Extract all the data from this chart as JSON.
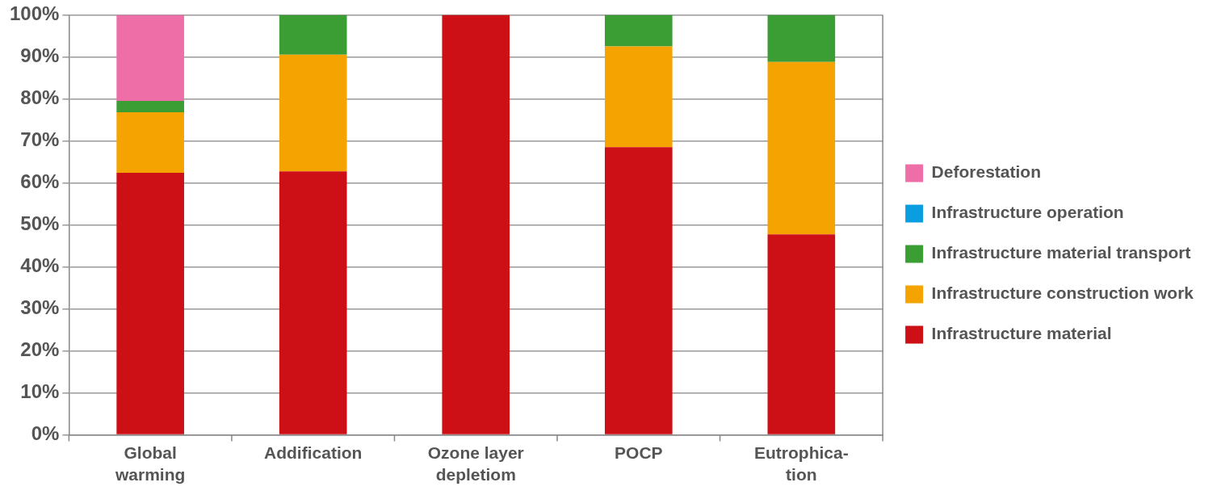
{
  "chart_data": {
    "type": "bar",
    "stacked": true,
    "categories": [
      "Global warming",
      "Addification",
      "Ozone layer depletiom",
      "POCP",
      "Eutrophica-tion"
    ],
    "series": [
      {
        "name": "Infrastructure material",
        "color": "#cc1016",
        "values": [
          62.4,
          62.7,
          100,
          68.5,
          47.7
        ]
      },
      {
        "name": "Infrastructure construction work",
        "color": "#f5a300",
        "values": [
          14.4,
          27.8,
          0,
          24.0,
          41.1
        ]
      },
      {
        "name": "Infrastructure material transport",
        "color": "#3a9e35",
        "values": [
          2.7,
          9.5,
          0,
          7.5,
          11.2
        ]
      },
      {
        "name": "Infrastructure operation",
        "color": "#0a9ee0",
        "values": [
          0,
          0,
          0,
          0,
          0
        ]
      },
      {
        "name": "Deforestation",
        "color": "#ee6fa8",
        "values": [
          20.5,
          0,
          0,
          0,
          0
        ]
      }
    ],
    "ylim": [
      0,
      100
    ],
    "yticks": [
      {
        "value": 0,
        "label": "0%"
      },
      {
        "value": 10,
        "label": "10%"
      },
      {
        "value": 20,
        "label": "20%"
      },
      {
        "value": 30,
        "label": "30%"
      },
      {
        "value": 40,
        "label": "40%"
      },
      {
        "value": 50,
        "label": "50%"
      },
      {
        "value": 60,
        "label": "60%"
      },
      {
        "value": 70,
        "label": "70%"
      },
      {
        "value": 80,
        "label": "80%"
      },
      {
        "value": 90,
        "label": "90%"
      },
      {
        "value": 100,
        "label": "100%"
      }
    ],
    "grid": "y",
    "legend": "right"
  }
}
